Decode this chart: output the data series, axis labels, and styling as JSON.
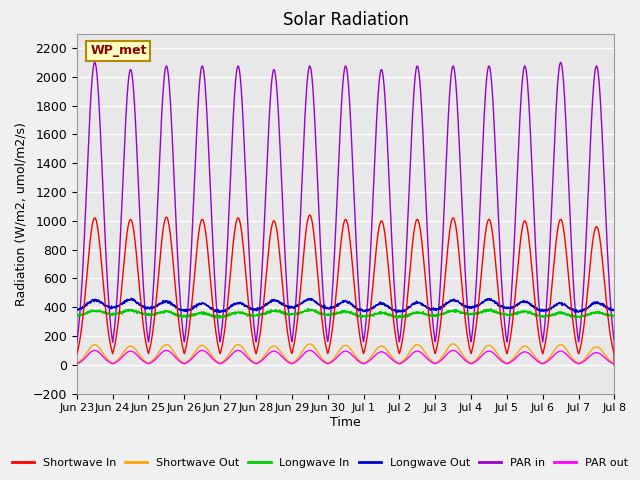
{
  "title": "Solar Radiation",
  "ylabel": "Radiation (W/m2, umol/m2/s)",
  "xlabel": "Time",
  "ylim": [
    -200,
    2300
  ],
  "yticks": [
    -200,
    0,
    200,
    400,
    600,
    800,
    1000,
    1200,
    1400,
    1600,
    1800,
    2000,
    2200
  ],
  "xtick_labels": [
    "Jun 23",
    "Jun 24",
    "Jun 25",
    "Jun 26",
    "Jun 27",
    "Jun 28",
    "Jun 29",
    "Jun 30",
    "Jul 1",
    "Jul 2",
    "Jul 3",
    "Jul 4",
    "Jul 5",
    "Jul 6",
    "Jul 7",
    "Jul 8"
  ],
  "annotation_text": "WP_met",
  "annotation_color": "#8B0000",
  "annotation_bg": "#FFFFC0",
  "annotation_border": "#B8860B",
  "colors": {
    "shortwave_in": "#FF0000",
    "shortwave_out": "#FFA500",
    "longwave_in": "#00CC00",
    "longwave_out": "#0000CD",
    "par_in": "#9900CC",
    "par_out": "#FF00FF"
  },
  "legend": [
    {
      "label": "Shortwave In",
      "color": "#FF0000"
    },
    {
      "label": "Shortwave Out",
      "color": "#FFA500"
    },
    {
      "label": "Longwave In",
      "color": "#00CC00"
    },
    {
      "label": "Longwave Out",
      "color": "#0000CD"
    },
    {
      "label": "PAR in",
      "color": "#9900CC"
    },
    {
      "label": "PAR out",
      "color": "#FF00FF"
    }
  ],
  "background_color": "#E8E8E8",
  "grid_color": "#FFFFFF",
  "n_days": 15,
  "points_per_day": 144
}
